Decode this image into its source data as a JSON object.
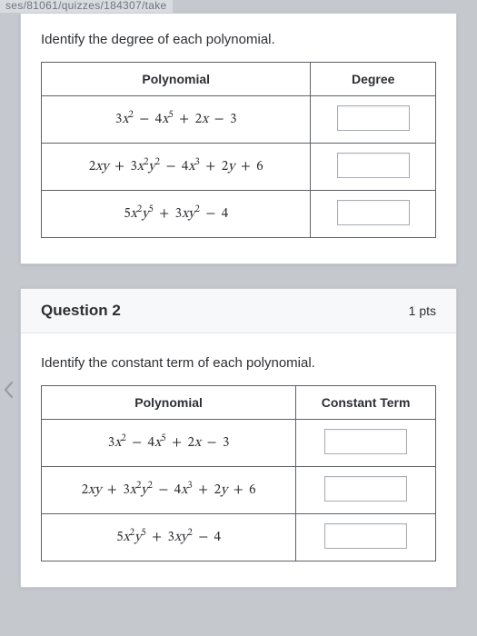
{
  "url_fragment": "ses/81061/quizzes/184307/take",
  "question1": {
    "prompt": "Identify the degree of each polynomial.",
    "headers": {
      "poly": "Polynomial",
      "answer": "Degree"
    },
    "rows": [
      {
        "poly_html": "3<i>x</i><sup>2</sup> <span class='sp'>−</span> 4<i>x</i><sup>5</sup> <span class='sp'>+</span> 2<i>x</i> <span class='sp'>−</span> 3"
      },
      {
        "poly_html": "2<i>x</i><i>y</i> <span class='sp'>+</span> 3<i>x</i><sup>2</sup><i>y</i><sup>2</sup> <span class='sp'>−</span> 4<i>x</i><sup>3</sup> <span class='sp'>+</span> 2<i>y</i> <span class='sp'>+</span> 6"
      },
      {
        "poly_html": "5<i>x</i><sup>2</sup><i>y</i><sup>5</sup> <span class='sp'>+</span> 3<i>x</i><i>y</i><sup>2</sup> <span class='sp'>−</span> 4"
      }
    ]
  },
  "question2": {
    "title": "Question 2",
    "points": "1 pts",
    "prompt": "Identify the constant term of each polynomial.",
    "headers": {
      "poly": "Polynomial",
      "answer": "Constant Term"
    },
    "rows": [
      {
        "poly_html": "3<i>x</i><sup>2</sup> <span class='sp'>−</span> 4<i>x</i><sup>5</sup> <span class='sp'>+</span> 2<i>x</i> <span class='sp'>−</span> 3"
      },
      {
        "poly_html": "2<i>x</i><i>y</i> <span class='sp'>+</span> 3<i>x</i><sup>2</sup><i>y</i><sup>2</sup> <span class='sp'>−</span> 4<i>x</i><sup>3</sup> <span class='sp'>+</span> 2<i>y</i> <span class='sp'>+</span> 6"
      },
      {
        "poly_html": "5<i>x</i><sup>2</sup><i>y</i><sup>5</sup> <span class='sp'>+</span> 3<i>x</i><i>y</i><sup>2</sup> <span class='sp'>−</span> 4"
      }
    ]
  },
  "colors": {
    "page_bg": "#c5c8cc",
    "card_bg": "#ffffff",
    "card_border": "#c9cdd3",
    "table_border": "#5d6168",
    "text": "#2d2f33",
    "input_border": "#a8acb3",
    "header_bg": "#f7f8fa"
  }
}
